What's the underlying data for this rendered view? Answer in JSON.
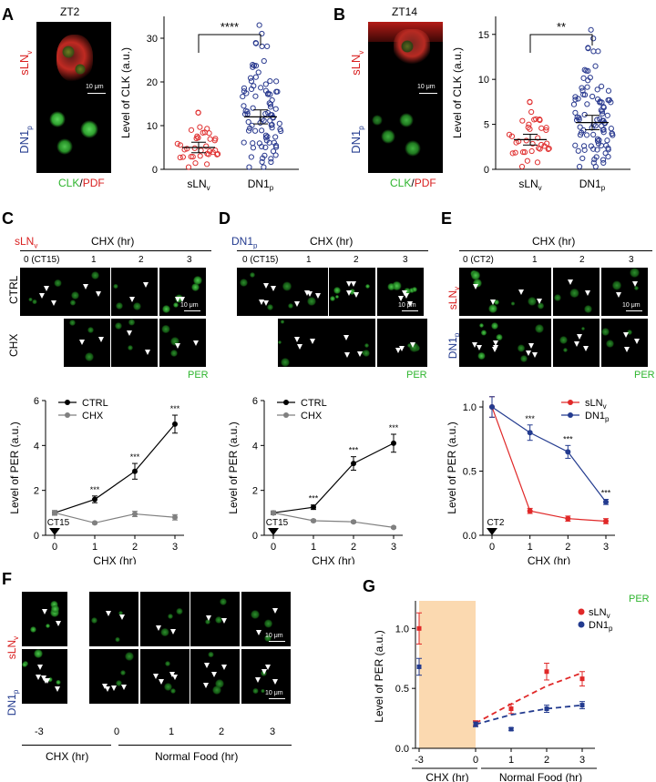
{
  "panels": {
    "A": {
      "label": "A",
      "time": "ZT2",
      "row1": "sLN",
      "row1_sub": "v",
      "row2": "DN1",
      "row2_sub": "p",
      "scale": "10 μm",
      "stain_green": "CLK",
      "stain_sep": "/",
      "stain_red": "PDF"
    },
    "B": {
      "label": "B",
      "time": "ZT14",
      "row1": "sLN",
      "row1_sub": "v",
      "row2": "DN1",
      "row2_sub": "p",
      "scale": "10 μm",
      "stain_green": "CLK",
      "stain_sep": "/",
      "stain_red": "PDF"
    },
    "C": {
      "label": "C",
      "cell": "sLN",
      "cell_sub": "v",
      "header": "CHX (hr)",
      "cols": [
        "0 (CT15)",
        "1",
        "2",
        "3"
      ],
      "rows": [
        "CTRL",
        "CHX"
      ],
      "scale": "10 μm",
      "stain": "PER"
    },
    "D": {
      "label": "D",
      "cell": "DN1",
      "cell_sub": "p",
      "header": "CHX (hr)",
      "cols": [
        "0 (CT15)",
        "1",
        "2",
        "3"
      ],
      "scale": "10 μm",
      "stain": "PER"
    },
    "E": {
      "label": "E",
      "header": "CHX (hr)",
      "cols": [
        "0 (CT2)",
        "1",
        "2",
        "3"
      ],
      "rows": [
        "sLN",
        "DN1"
      ],
      "row_subs": [
        "v",
        "p"
      ],
      "scale": "10 μm",
      "stain": "PER"
    },
    "F": {
      "label": "F",
      "rows": [
        "sLN",
        "DN1"
      ],
      "row_subs": [
        "v",
        "p"
      ],
      "ticks": [
        "-3",
        "0",
        "1",
        "2",
        "3"
      ],
      "xlabel1": "CHX (hr)",
      "xlabel2": "Normal Food (hr)",
      "scale": "10 μm",
      "stain": "PER"
    },
    "G": {
      "label": "G"
    }
  },
  "chart_data": [
    {
      "id": "A",
      "type": "scatter",
      "ylabel": "Level of CLK (a.u.)",
      "ylim": [
        0,
        35
      ],
      "yticks": [
        0,
        10,
        20,
        30
      ],
      "categories": [
        {
          "name": "sLN",
          "sub": "v"
        },
        {
          "name": "DN1",
          "sub": "p"
        }
      ],
      "series": [
        {
          "name": "sLNv",
          "color": "#e03030",
          "mean": 5,
          "sem": 0.6,
          "n": 36,
          "min": 0.5,
          "max": 13
        },
        {
          "name": "DN1p",
          "color": "#2a3a8f",
          "mean": 12,
          "sem": 0.8,
          "n": 90,
          "min": 0.5,
          "max": 33
        }
      ],
      "significance": "****"
    },
    {
      "id": "B",
      "type": "scatter",
      "ylabel": "Level of CLK (a.u.)",
      "ylim": [
        0,
        17
      ],
      "yticks": [
        0,
        5,
        10,
        15
      ],
      "categories": [
        {
          "name": "sLN",
          "sub": "v"
        },
        {
          "name": "DN1",
          "sub": "p"
        }
      ],
      "series": [
        {
          "name": "sLNv",
          "color": "#e03030",
          "mean": 3.3,
          "sem": 0.3,
          "n": 36,
          "min": 0.3,
          "max": 7.5
        },
        {
          "name": "DN1p",
          "color": "#2a3a8f",
          "mean": 5.2,
          "sem": 0.4,
          "n": 95,
          "min": 0.3,
          "max": 15.5
        }
      ],
      "significance": "**"
    },
    {
      "id": "C",
      "type": "line",
      "ylabel": "Level of PER (a.u.)",
      "xlabel": "CHX (hr)",
      "ylim": [
        0,
        6
      ],
      "yticks": [
        0,
        2,
        4,
        6
      ],
      "x": [
        0,
        1,
        2,
        3
      ],
      "marker_label": "CT15",
      "series": [
        {
          "name": "CTRL",
          "color": "#000000",
          "values": [
            1.0,
            1.6,
            2.85,
            4.95
          ],
          "err": [
            0.1,
            0.15,
            0.35,
            0.4
          ]
        },
        {
          "name": "CHX",
          "color": "#808080",
          "values": [
            1.0,
            0.55,
            0.95,
            0.8
          ],
          "err": [
            0.1,
            0.05,
            0.12,
            0.12
          ]
        }
      ],
      "sig": [
        "",
        "***",
        "***",
        "***"
      ],
      "legend": "top-left"
    },
    {
      "id": "D",
      "type": "line",
      "ylabel": "Level of PER (a.u.)",
      "xlabel": "CHX (hr)",
      "ylim": [
        0,
        6
      ],
      "yticks": [
        0,
        2,
        4,
        6
      ],
      "x": [
        0,
        1,
        2,
        3
      ],
      "marker_label": "CT15",
      "series": [
        {
          "name": "CTRL",
          "color": "#000000",
          "values": [
            1.0,
            1.25,
            3.2,
            4.1
          ],
          "err": [
            0.08,
            0.1,
            0.3,
            0.4
          ]
        },
        {
          "name": "CHX",
          "color": "#808080",
          "values": [
            1.0,
            0.65,
            0.6,
            0.35
          ],
          "err": [
            0.08,
            0.05,
            0.05,
            0.04
          ]
        }
      ],
      "sig": [
        "",
        "***",
        "***",
        "***"
      ],
      "legend": "top-left"
    },
    {
      "id": "E",
      "type": "line",
      "ylabel": "Level of PER (a.u.)",
      "xlabel": "CHX (hr)",
      "ylim": [
        0,
        1.05
      ],
      "yticks": [
        0,
        0.5,
        1.0
      ],
      "ytick_labels": [
        "0.0",
        "0.5",
        "1.0"
      ],
      "x": [
        0,
        1,
        2,
        3
      ],
      "marker_label": "CT2",
      "series": [
        {
          "name": "sLNv",
          "label": "sLN",
          "sub": "v",
          "color": "#e02828",
          "values": [
            1.0,
            0.19,
            0.13,
            0.11
          ],
          "err": [
            0.08,
            0.02,
            0.02,
            0.02
          ]
        },
        {
          "name": "DN1p",
          "label": "DN1",
          "sub": "p",
          "color": "#233b8f",
          "values": [
            1.0,
            0.8,
            0.65,
            0.26
          ],
          "err": [
            0.08,
            0.06,
            0.05,
            0.02
          ]
        }
      ],
      "sig": [
        "",
        "***",
        "***",
        "***"
      ],
      "legend": "top-right"
    },
    {
      "id": "G",
      "type": "scatter",
      "ylabel": "Level of PER (a.u.)",
      "ylim": [
        0,
        1.2
      ],
      "yticks": [
        0,
        0.5,
        1.0
      ],
      "ytick_labels": [
        "0.0",
        "0.5",
        "1.0"
      ],
      "xticks": [
        "-3",
        "0",
        "1",
        "2",
        "3"
      ],
      "xlabel1": "CHX (hr)",
      "xlabel2": "Normal Food (hr)",
      "shade": [
        -3,
        0
      ],
      "shade_color": "#fbd9b0",
      "series": [
        {
          "name": "sLNv",
          "label": "sLN",
          "sub": "v",
          "color": "#e02828",
          "x": [
            -3,
            0,
            1,
            2,
            3
          ],
          "values": [
            1.0,
            0.21,
            0.33,
            0.64,
            0.58
          ],
          "err": [
            0.13,
            0.02,
            0.04,
            0.07,
            0.06
          ],
          "fit": [
            0.21,
            0.37,
            0.52,
            0.63
          ]
        },
        {
          "name": "DN1p",
          "label": "DN1",
          "sub": "p",
          "color": "#233b8f",
          "x": [
            -3,
            0,
            1,
            2,
            3
          ],
          "values": [
            0.68,
            0.2,
            0.16,
            0.33,
            0.36
          ],
          "err": [
            0.07,
            0.02,
            0.01,
            0.03,
            0.03
          ],
          "fit": [
            0.2,
            0.28,
            0.33,
            0.36
          ]
        }
      ],
      "legend": "top-right"
    }
  ]
}
